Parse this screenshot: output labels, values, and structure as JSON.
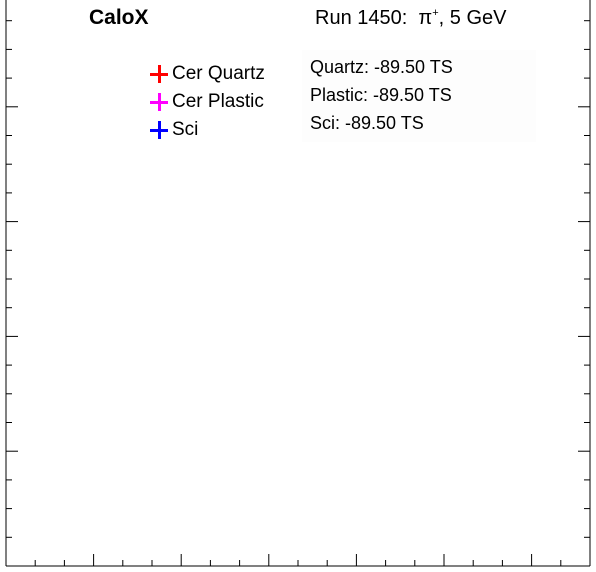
{
  "chart_data": {
    "type": "scatter",
    "title_left": "CaloX",
    "title_right": {
      "run": "Run 1450:",
      "particle": "π",
      "charge": "+",
      "energy": ", 5 GeV"
    },
    "series": [
      {
        "name": "Cer Quartz",
        "color": "#ff0000",
        "points": []
      },
      {
        "name": "Cer Plastic",
        "color": "#ff00ff",
        "points": []
      },
      {
        "name": "Sci",
        "color": "#0000ff",
        "points": []
      }
    ],
    "stats": [
      "Quartz: -89.50 TS",
      "Plastic: -89.50 TS",
      "Sci: -89.50 TS"
    ],
    "grid": false,
    "legend_position": "top-left"
  }
}
